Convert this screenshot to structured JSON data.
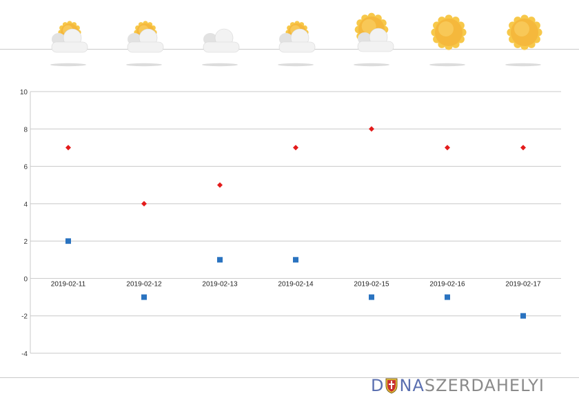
{
  "forecast": {
    "days": [
      {
        "date": "2019-02-11",
        "icon": "partly-cloudy-icon"
      },
      {
        "date": "2019-02-12",
        "icon": "partly-cloudy-icon"
      },
      {
        "date": "2019-02-13",
        "icon": "cloudy-icon"
      },
      {
        "date": "2019-02-14",
        "icon": "partly-cloudy-icon"
      },
      {
        "date": "2019-02-15",
        "icon": "mostly-sunny-icon"
      },
      {
        "date": "2019-02-16",
        "icon": "sunny-icon"
      },
      {
        "date": "2019-02-17",
        "icon": "sunny-icon"
      }
    ]
  },
  "chart_data": {
    "type": "scatter",
    "categories": [
      "2019-02-11",
      "2019-02-12",
      "2019-02-13",
      "2019-02-14",
      "2019-02-15",
      "2019-02-16",
      "2019-02-17"
    ],
    "series": [
      {
        "values": [
          7,
          4,
          5,
          7,
          8,
          7,
          7
        ],
        "color": "#e31b1b",
        "marker": "diamond"
      },
      {
        "values": [
          2,
          -1,
          1,
          1,
          -1,
          -1,
          -2
        ],
        "color": "#2a73c0",
        "marker": "square"
      }
    ],
    "ylim": [
      -4,
      10
    ],
    "yticks": [
      "10",
      "8",
      "6",
      "4",
      "2",
      "0",
      "-2",
      "-4"
    ],
    "grid": true
  },
  "brand": {
    "logo_text_1": "D",
    "logo_text_2": "NA",
    "logo_text_3": "SZERDAHELYI",
    "colors": {
      "blue": "#5a6fb0",
      "gray": "#8a8a8a"
    }
  }
}
